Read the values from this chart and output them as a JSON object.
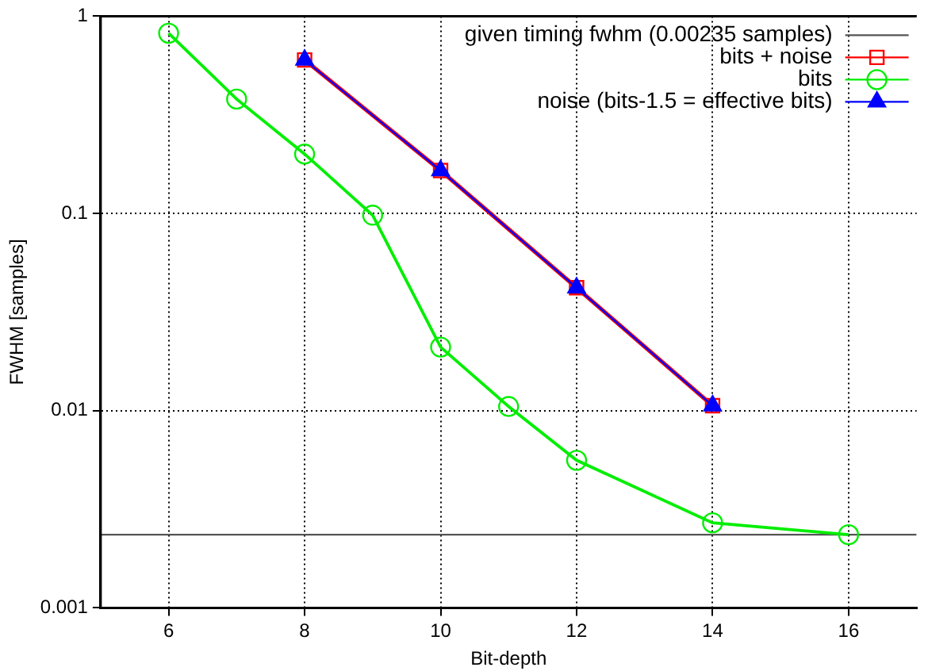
{
  "chart_data": {
    "type": "line",
    "xlabel": "Bit-depth",
    "ylabel": "FWHM [samples]",
    "log": "y",
    "grid": true,
    "legend": "top right",
    "xlim": [
      5,
      17
    ],
    "xticks": [
      6,
      8,
      10,
      12,
      14,
      16
    ],
    "ylim": [
      0.001,
      1
    ],
    "yticks": [
      0.001,
      0.01,
      0.1,
      1
    ],
    "ref_lines": [
      {
        "axis": "y",
        "value": 0.00235,
        "label": "given timing fwhm (0.00235 samples)",
        "color": "#555555"
      }
    ],
    "series": [
      {
        "name": "bits + noise",
        "color": "#ff0000",
        "marker": "square",
        "x": [
          8,
          10,
          12,
          14
        ],
        "values": [
          0.6,
          0.165,
          0.042,
          0.0106
        ]
      },
      {
        "name": "bits",
        "color": "#00ee00",
        "marker": "circle",
        "x": [
          6,
          7,
          8,
          9,
          10,
          11,
          12,
          14,
          16
        ],
        "values": [
          0.82,
          0.38,
          0.2,
          0.098,
          0.021,
          0.0105,
          0.0056,
          0.0027,
          0.00235
        ]
      },
      {
        "name": "noise (bits-1.5 = effective bits)",
        "color": "#0000ff",
        "marker": "triangle",
        "x": [
          8,
          10,
          12,
          14
        ],
        "values": [
          0.6,
          0.165,
          0.042,
          0.0106
        ]
      }
    ]
  }
}
